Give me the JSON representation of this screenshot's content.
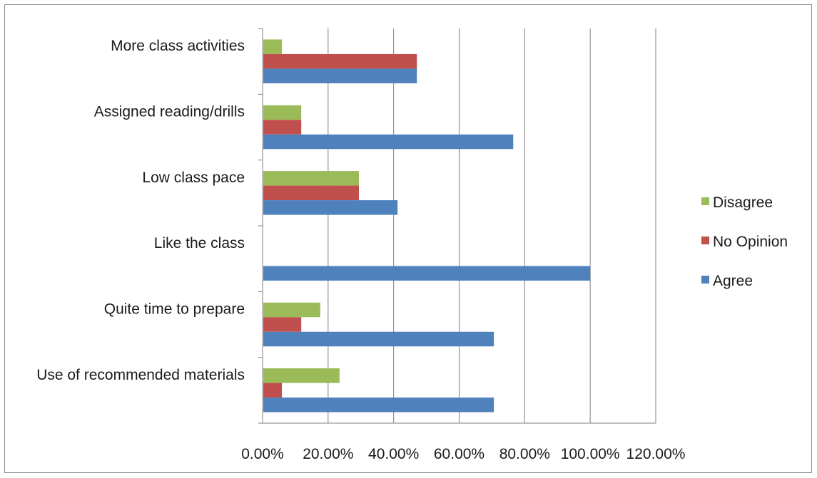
{
  "chart_data": {
    "type": "bar",
    "orientation": "horizontal",
    "categories": [
      "More class activities",
      "Assigned reading/drills",
      "Low class pace",
      "Like the class",
      "Quite time to prepare",
      "Use of recommended materials"
    ],
    "series": [
      {
        "name": "Disagree",
        "color": "#9bbb59",
        "values": [
          5.9,
          11.8,
          29.4,
          0,
          17.6,
          23.5
        ]
      },
      {
        "name": "No Opinion",
        "color": "#c0504d",
        "values": [
          47.1,
          11.8,
          29.4,
          0,
          11.8,
          5.9
        ]
      },
      {
        "name": "Agree",
        "color": "#4f81bd",
        "values": [
          47.1,
          76.5,
          41.2,
          100,
          70.6,
          70.6
        ]
      }
    ],
    "x_ticks": [
      "0.00%",
      "20.00%",
      "40.00%",
      "60.00%",
      "80.00%",
      "100.00%",
      "120.00%"
    ],
    "xlim": [
      0,
      120
    ],
    "grid": true,
    "legend_position": "right",
    "title": "",
    "xlabel": "",
    "ylabel": ""
  }
}
